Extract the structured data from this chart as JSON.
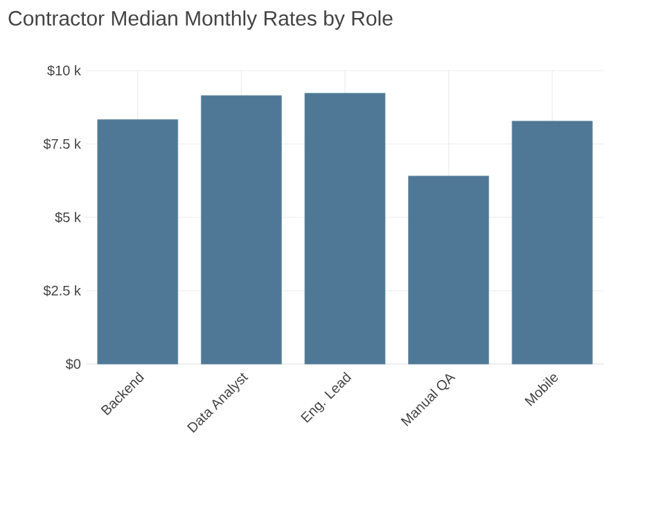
{
  "chart_data": {
    "type": "bar",
    "title": "Contractor Median Monthly Rates by Role",
    "categories": [
      "Backend",
      "Data Analyst",
      "Eng. Lead",
      "Manual QA",
      "Mobile"
    ],
    "values": [
      8330,
      9150,
      9230,
      6410,
      8280
    ],
    "color": "#4f7896",
    "ylim": [
      0,
      10000
    ],
    "yticks": [
      {
        "value": 0,
        "label": "$0"
      },
      {
        "value": 2500,
        "label": "$2.5 k"
      },
      {
        "value": 5000,
        "label": "$5 k"
      },
      {
        "value": 7500,
        "label": "$7.5 k"
      },
      {
        "value": 10000,
        "label": "$10 k"
      }
    ],
    "grid": true
  }
}
